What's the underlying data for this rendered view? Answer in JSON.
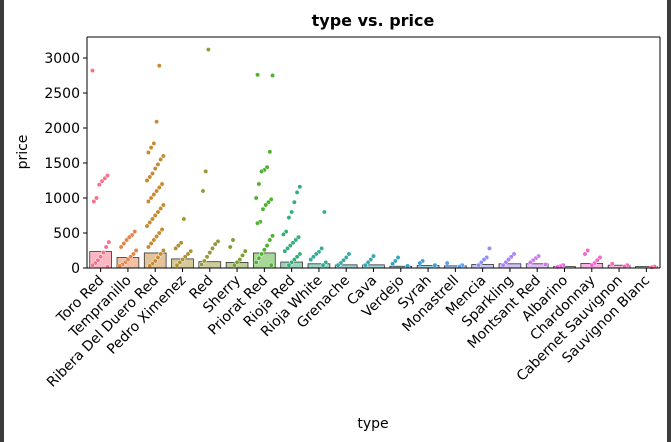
{
  "chart_data": {
    "type": "bar",
    "title": "type vs. price",
    "xlabel": "type",
    "ylabel": "price",
    "ylim": [
      0,
      3300
    ],
    "yticks": [
      0,
      500,
      1000,
      1500,
      2000,
      2500,
      3000
    ],
    "grid": false,
    "legend": "none",
    "categories": [
      "Toro Red",
      "Tempranillo",
      "Ribera Del Duero Red",
      "Pedro Ximenez",
      "Red",
      "Sherry",
      "Priorat Red",
      "Rioja Red",
      "Rioja White",
      "Grenache",
      "Cava",
      "Verdejo",
      "Syrah",
      "Monastrell",
      "Mencia",
      "Sparkling",
      "Montsant Red",
      "Albarino",
      "Chardonnay",
      "Cabernet Sauvignon",
      "Sauvignon Blanc"
    ],
    "values": [
      235,
      150,
      215,
      130,
      90,
      80,
      215,
      85,
      60,
      45,
      45,
      25,
      35,
      30,
      50,
      60,
      60,
      20,
      65,
      40,
      20
    ],
    "colors": [
      "#f77189",
      "#e5824a",
      "#c68a31",
      "#ae9331",
      "#97983a",
      "#7da031",
      "#50b131",
      "#33b07a",
      "#35ad94",
      "#36aaa4",
      "#38a7b2",
      "#3aa5c1",
      "#3ea1d6",
      "#58a0f5",
      "#8f91f4",
      "#a984f4",
      "#cc7af4",
      "#f461dd",
      "#f565cc",
      "#f569b6",
      "#f66ea0"
    ],
    "points": [
      [
        2820,
        1320,
        1280,
        1240,
        1190,
        1000,
        950,
        370,
        300,
        220,
        160,
        110,
        70,
        40,
        20
      ],
      [
        520,
        470,
        440,
        400,
        350,
        300,
        250,
        200,
        160,
        120,
        80,
        50,
        30
      ],
      [
        2890,
        2090,
        1780,
        1720,
        1650,
        1600,
        1550,
        1480,
        1420,
        1350,
        1300,
        1250,
        1200,
        1150,
        1100,
        1050,
        1000,
        950,
        900,
        850,
        800,
        750,
        700,
        650,
        600,
        550,
        500,
        450,
        400,
        350,
        300,
        250,
        200,
        150,
        100,
        60,
        30
      ],
      [
        700,
        360,
        320,
        280,
        240,
        200,
        160,
        120,
        80,
        40
      ],
      [
        3120,
        1380,
        1100,
        380,
        340,
        280,
        220,
        160,
        100,
        50
      ],
      [
        400,
        300,
        240,
        180,
        120,
        80,
        40
      ],
      [
        2760,
        2750,
        1660,
        1440,
        1400,
        1380,
        1200,
        1000,
        980,
        940,
        900,
        840,
        660,
        640,
        460,
        400,
        320,
        260,
        200,
        140,
        80,
        40
      ],
      [
        1160,
        1080,
        940,
        800,
        720,
        520,
        480,
        440,
        400,
        360,
        320,
        280,
        240,
        200,
        160,
        120,
        80,
        40
      ],
      [
        800,
        280,
        230,
        200,
        160,
        120,
        80,
        40
      ],
      [
        200,
        150,
        110,
        70,
        40
      ],
      [
        170,
        120,
        80,
        40
      ],
      [
        150,
        100,
        60,
        30
      ],
      [
        100,
        70,
        40
      ],
      [
        70,
        40,
        20
      ],
      [
        280,
        150,
        120,
        80,
        40
      ],
      [
        200,
        160,
        120,
        80,
        40
      ],
      [
        170,
        140,
        110,
        80,
        50
      ],
      [
        40,
        25,
        15
      ],
      [
        250,
        200,
        150,
        110,
        70,
        40
      ],
      [
        60,
        40,
        20
      ],
      [
        20,
        10
      ]
    ]
  }
}
